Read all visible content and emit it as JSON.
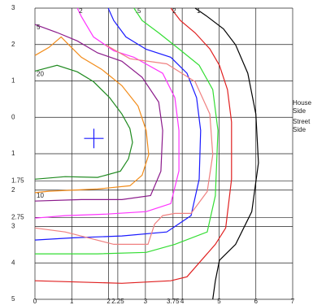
{
  "chart_data": {
    "type": "contour",
    "xlim": [
      0,
      7
    ],
    "ylim": [
      -3,
      5
    ],
    "xticks": [
      0,
      1,
      2,
      2.25,
      3,
      3.75,
      4,
      5,
      6,
      7
    ],
    "yticks": [
      {
        "value": -3,
        "label": "3"
      },
      {
        "value": -2,
        "label": "2"
      },
      {
        "value": -1,
        "label": "1"
      },
      0,
      1,
      1.75,
      2,
      2.75,
      3,
      4,
      5
    ],
    "grid": true,
    "annotations": [
      "House",
      "Side",
      "Street",
      "Side"
    ],
    "markers": [
      {
        "x": 1.6,
        "y": 0.58,
        "color": "#1a1aff"
      }
    ],
    "series": [
      {
        "name": "20",
        "color": "#1f8a1f",
        "x": [
          0,
          0.6,
          1.15,
          1.59,
          2.03,
          2.36,
          2.58,
          2.65,
          2.54,
          2.32,
          1.7,
          0.82,
          0
        ],
        "y": [
          -1.27,
          -1.43,
          -1.25,
          -0.98,
          -0.54,
          -0.09,
          0.31,
          0.69,
          1.14,
          1.48,
          1.65,
          1.63,
          1.7
        ]
      },
      {
        "name": "10",
        "color": "#f28c1a",
        "x": [
          0,
          0.38,
          1.7,
          2.58,
          2.91,
          3.09,
          3.02,
          2.8,
          2.36,
          1.81,
          1.26,
          0.93,
          0.71,
          0.38,
          0
        ],
        "y": [
          2.07,
          2.03,
          1.97,
          1.88,
          1.59,
          1.03,
          0.36,
          -0.31,
          -0.87,
          -1.32,
          -1.65,
          -1.98,
          -2.21,
          -1.92,
          -1.7
        ]
      },
      {
        "name": "5",
        "color": "#8b1a8b",
        "x": [
          0,
          0.6,
          1.15,
          1.7,
          2.36,
          2.91,
          3.36,
          3.47,
          3.42,
          3.14,
          2.36,
          1.26,
          0
        ],
        "y": [
          -2.55,
          -2.33,
          -2.1,
          -1.77,
          -1.54,
          -1.1,
          -0.42,
          0.36,
          1.48,
          2.15,
          2.26,
          2.26,
          2.3
        ]
      },
      {
        "name": "2",
        "color": "#ff33ff",
        "x": [
          1.15,
          1.26,
          1.59,
          2.14,
          2.69,
          3.47,
          3.8,
          3.91,
          3.91,
          3.69,
          3.02,
          1.92,
          0.82,
          0
        ],
        "y": [
          -3.0,
          -2.77,
          -2.21,
          -1.83,
          -1.65,
          -1.21,
          -0.54,
          0.36,
          1.47,
          2.37,
          2.59,
          2.66,
          2.7,
          2.77
        ]
      },
      {
        "color": "#1a1aff",
        "x": [
          1.99,
          2.14,
          2.47,
          3.02,
          3.69,
          4.13,
          4.39,
          4.5,
          4.46,
          4.24,
          3.58,
          2.36,
          1.04,
          0
        ],
        "y": [
          -3.0,
          -2.66,
          -2.21,
          -1.87,
          -1.65,
          -1.21,
          -0.54,
          0.36,
          1.7,
          2.7,
          3.15,
          3.26,
          3.31,
          3.37
        ]
      },
      {
        "color": "#f08080",
        "x": [
          1.92,
          2.58,
          3.58,
          4.35,
          4.75,
          4.83,
          4.68,
          4.24,
          3.8,
          3.47,
          3.25,
          3.07,
          2.14,
          0.82,
          0
        ],
        "y": [
          -1.99,
          -1.61,
          -1.47,
          -0.98,
          -0.09,
          1.03,
          2.04,
          2.64,
          2.64,
          2.7,
          2.93,
          3.49,
          3.49,
          3.15,
          3.04
        ]
      },
      {
        "name": ".5",
        "color": "#33dd33",
        "x": [
          2.69,
          2.91,
          3.36,
          3.91,
          4.46,
          4.83,
          4.97,
          4.9,
          4.68,
          3.8,
          3.02,
          1.7,
          0
        ],
        "y": [
          -3.0,
          -2.66,
          -2.32,
          -1.88,
          -1.43,
          -0.76,
          0.36,
          2.15,
          3.15,
          3.49,
          3.71,
          3.75,
          3.75
        ]
      },
      {
        "name": "2",
        "color": "#e02020",
        "x": [
          3.69,
          3.95,
          4.35,
          4.75,
          5.01,
          5.23,
          5.34,
          5.34,
          5.18,
          4.9,
          4.13,
          3.69,
          2.36,
          0
        ],
        "y": [
          -3.0,
          -2.66,
          -2.32,
          -1.88,
          -1.43,
          -0.76,
          0.13,
          1.7,
          3.04,
          3.49,
          4.38,
          4.49,
          4.56,
          4.49
        ]
      },
      {
        "name": "1",
        "color": "#000000",
        "x": [
          4.35,
          4.68,
          5.12,
          5.45,
          5.78,
          6.0,
          6.07,
          5.89,
          5.45,
          5.01,
          4.9,
          4.83
        ],
        "y": [
          -3.0,
          -2.77,
          -2.43,
          -1.99,
          -1.21,
          -0.09,
          1.25,
          2.59,
          3.49,
          3.93,
          4.49,
          5.0
        ]
      }
    ]
  }
}
